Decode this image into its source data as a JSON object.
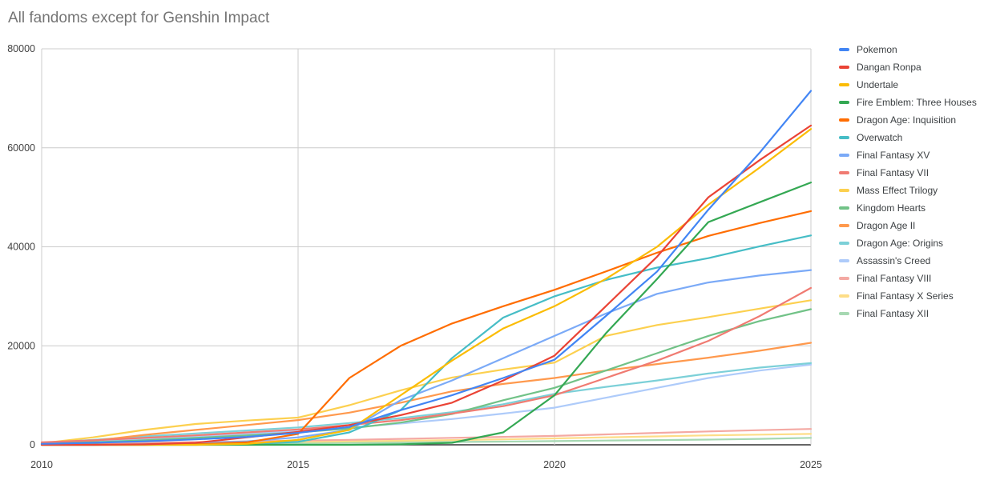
{
  "title": "All fandoms except for Genshin Impact",
  "style": {
    "title_color": "#757575",
    "axis_label_color": "#424242",
    "gridline_color": "#cccccc",
    "baseline_color": "#333333",
    "legend_text_color": "#3c4043",
    "background": "#ffffff"
  },
  "chart_data": {
    "type": "line",
    "title": "All fandoms except for Genshin Impact",
    "xlabel": "",
    "ylabel": "",
    "xlim": [
      2010,
      2025
    ],
    "ylim": [
      0,
      80000
    ],
    "x_ticks": [
      2010,
      2015,
      2020,
      2025
    ],
    "y_ticks": [
      0,
      20000,
      40000,
      60000,
      80000
    ],
    "grid": true,
    "legend_position": "right",
    "x": [
      2010,
      2011,
      2012,
      2013,
      2014,
      2015,
      2016,
      2017,
      2018,
      2019,
      2020,
      2021,
      2022,
      2023,
      2024,
      2025
    ],
    "series": [
      {
        "name": "Pokemon",
        "color": "#4285F4",
        "values": [
          200,
          400,
          700,
          1100,
          1600,
          2400,
          3600,
          7000,
          10000,
          13500,
          17200,
          26000,
          35000,
          47500,
          59000,
          71500
        ]
      },
      {
        "name": "Dangan Ronpa",
        "color": "#EA4335",
        "values": [
          0,
          0,
          100,
          400,
          1500,
          2600,
          4000,
          6000,
          8500,
          13000,
          18000,
          28000,
          38000,
          50000,
          57500,
          64500
        ]
      },
      {
        "name": "Undertale",
        "color": "#FBBC04",
        "values": [
          0,
          0,
          0,
          0,
          200,
          1000,
          3000,
          10000,
          17000,
          23500,
          28000,
          33500,
          40000,
          48500,
          56000,
          63800
        ]
      },
      {
        "name": "Fire Emblem: Three Houses",
        "color": "#34A853",
        "values": [
          0,
          0,
          0,
          0,
          0,
          0,
          0,
          100,
          400,
          2500,
          10000,
          22500,
          33500,
          45000,
          49000,
          53000
        ]
      },
      {
        "name": "Dragon Age: Inquisition",
        "color": "#FF6D01",
        "values": [
          0,
          0,
          0,
          100,
          500,
          2200,
          13500,
          20000,
          24500,
          28000,
          31300,
          35000,
          38800,
          42200,
          44800,
          47200
        ]
      },
      {
        "name": "Overwatch",
        "color": "#46BDC6",
        "values": [
          0,
          0,
          0,
          0,
          100,
          600,
          2500,
          7000,
          17500,
          25700,
          30000,
          33300,
          35800,
          37700,
          40100,
          42300
        ]
      },
      {
        "name": "Final Fantasy XV",
        "color": "#7BAAF7",
        "values": [
          0,
          0,
          100,
          300,
          700,
          1500,
          3000,
          9000,
          13000,
          17500,
          22000,
          26500,
          30500,
          32800,
          34200,
          35300
        ]
      },
      {
        "name": "Final Fantasy VII",
        "color": "#F07B72",
        "values": [
          500,
          900,
          1400,
          1900,
          2500,
          3100,
          4000,
          5000,
          6300,
          7800,
          10000,
          13500,
          17000,
          21000,
          26000,
          31700
        ]
      },
      {
        "name": "Mass Effect Trilogy",
        "color": "#FCD04F",
        "values": [
          300,
          1500,
          3000,
          4200,
          4900,
          5500,
          8000,
          11000,
          13600,
          15200,
          16600,
          22000,
          24200,
          25800,
          27500,
          29200
        ]
      },
      {
        "name": "Kingdom Hearts",
        "color": "#71C287",
        "values": [
          200,
          500,
          900,
          1400,
          1900,
          2500,
          3300,
          4500,
          6200,
          9000,
          11500,
          15000,
          18500,
          22000,
          25000,
          27400
        ]
      },
      {
        "name": "Dragon Age II",
        "color": "#FF994D",
        "values": [
          0,
          800,
          2000,
          3000,
          4000,
          5000,
          6500,
          8500,
          10800,
          12300,
          13500,
          15000,
          16300,
          17600,
          19000,
          20600
        ]
      },
      {
        "name": "Dragon Age: Origins",
        "color": "#7CD0D8",
        "values": [
          400,
          1000,
          1700,
          2300,
          2900,
          3500,
          4400,
          5400,
          6600,
          8200,
          10300,
          11700,
          13000,
          14400,
          15600,
          16500
        ]
      },
      {
        "name": "Assassin's Creed",
        "color": "#AECBFA",
        "values": [
          300,
          700,
          1200,
          1700,
          2200,
          2800,
          3500,
          4300,
          5200,
          6300,
          7500,
          9500,
          11500,
          13500,
          15000,
          16200
        ]
      },
      {
        "name": "Final Fantasy VIII",
        "color": "#F4A9A3",
        "values": [
          200,
          300,
          400,
          550,
          700,
          850,
          1000,
          1200,
          1400,
          1600,
          1800,
          2100,
          2400,
          2700,
          2950,
          3200
        ]
      },
      {
        "name": "Final Fantasy X Series",
        "color": "#FDDD87",
        "values": [
          100,
          150,
          250,
          350,
          450,
          600,
          700,
          800,
          950,
          1100,
          1300,
          1500,
          1700,
          1900,
          2050,
          2200
        ]
      },
      {
        "name": "Final Fantasy XII",
        "color": "#A6D8B2",
        "values": [
          50,
          80,
          120,
          180,
          250,
          320,
          400,
          480,
          560,
          650,
          750,
          850,
          950,
          1050,
          1200,
          1400
        ]
      }
    ]
  }
}
